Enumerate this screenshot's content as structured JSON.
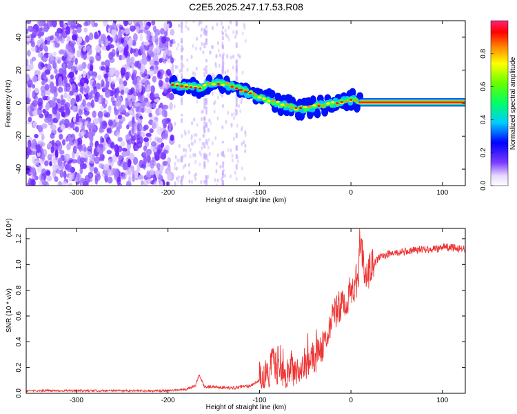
{
  "chart_data": [
    {
      "type": "heatmap",
      "title": "C2E5.2025.247.17.53.R08",
      "xlabel": "Height of straight line (km)",
      "ylabel": "Frequency (Hz)",
      "xlim": [
        -355,
        125
      ],
      "ylim": [
        -50,
        50
      ],
      "xticks": [
        -300,
        -200,
        -100,
        0,
        100
      ],
      "yticks": [
        -40,
        -20,
        0,
        20,
        40
      ],
      "colorbar": {
        "label": "Normalized spectral amplitude",
        "range": [
          0,
          1
        ],
        "ticks": [
          "0.0",
          "0.2",
          "0.4",
          "0.6",
          "0.8"
        ]
      },
      "ridge": [
        {
          "x": -195,
          "y": 11
        },
        {
          "x": -180,
          "y": 10
        },
        {
          "x": -165,
          "y": 9
        },
        {
          "x": -150,
          "y": 12
        },
        {
          "x": -135,
          "y": 11
        },
        {
          "x": -120,
          "y": 8
        },
        {
          "x": -105,
          "y": 5
        },
        {
          "x": -90,
          "y": 2
        },
        {
          "x": -75,
          "y": -1
        },
        {
          "x": -60,
          "y": -3
        },
        {
          "x": -45,
          "y": -3
        },
        {
          "x": -30,
          "y": -1
        },
        {
          "x": -15,
          "y": 0
        },
        {
          "x": 0,
          "y": 2
        },
        {
          "x": 10,
          "y": 0.5
        },
        {
          "x": 60,
          "y": 0.5
        },
        {
          "x": 125,
          "y": 0.5
        }
      ]
    },
    {
      "type": "line",
      "title": "",
      "xlabel": "Height of straight line (km)",
      "ylabel": "SNR (10 * v/v)",
      "scale_label": "(x10⁴)",
      "color": "#ee3333",
      "xlim": [
        -355,
        125
      ],
      "ylim": [
        0,
        1.28
      ],
      "xticks": [
        -300,
        -200,
        -100,
        0,
        100
      ],
      "yticks": [
        "0.0",
        "0.2",
        "0.4",
        "0.6",
        "0.8",
        "1.0",
        "1.2"
      ],
      "series": [
        {
          "name": "SNR",
          "x": [
            -355,
            -300,
            -250,
            -200,
            -180,
            -170,
            -166,
            -160,
            -150,
            -130,
            -110,
            -100,
            -90,
            -85,
            -80,
            -70,
            -60,
            -50,
            -40,
            -30,
            -20,
            -10,
            0,
            8,
            10,
            15,
            20,
            30,
            40,
            60,
            80,
            95,
            100,
            110,
            125
          ],
          "y": [
            0.02,
            0.02,
            0.02,
            0.02,
            0.03,
            0.06,
            0.14,
            0.05,
            0.05,
            0.04,
            0.06,
            0.1,
            0.14,
            0.3,
            0.14,
            0.16,
            0.18,
            0.2,
            0.26,
            0.38,
            0.6,
            0.68,
            0.78,
            0.9,
            1.28,
            0.85,
            0.95,
            1.05,
            1.08,
            1.1,
            1.12,
            1.12,
            1.14,
            1.13,
            1.12
          ]
        }
      ]
    }
  ]
}
